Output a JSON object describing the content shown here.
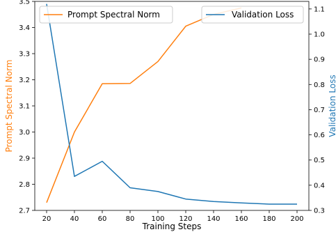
{
  "chart_data": {
    "type": "line",
    "x": [
      20,
      40,
      60,
      80,
      100,
      120,
      140,
      160,
      180,
      200
    ],
    "xlabel": "Training Steps",
    "xlim": [
      20,
      200
    ],
    "xticks": [
      "20",
      "40",
      "60",
      "80",
      "100",
      "120",
      "140",
      "160",
      "180",
      "200"
    ],
    "series": [
      {
        "name": "Prompt Spectral Norm",
        "axis": "left",
        "color": "#ff7f0e",
        "values": [
          2.73,
          3.0,
          3.185,
          3.186,
          3.27,
          3.405,
          3.45,
          3.475,
          null,
          null
        ]
      },
      {
        "name": "Validation Loss",
        "axis": "right",
        "color": "#1f77b4",
        "values": [
          1.12,
          0.435,
          0.495,
          0.39,
          0.375,
          0.345,
          0.335,
          0.33,
          0.325,
          0.325
        ]
      }
    ],
    "ylabel_left": "Prompt Spectral Norm",
    "ylim_left": [
      2.7,
      3.5
    ],
    "yticks_left": [
      "2.7",
      "2.8",
      "2.9",
      "3.0",
      "3.1",
      "3.2",
      "3.3",
      "3.4",
      "3.5"
    ],
    "ylabel_right": "Validation Loss",
    "ylim_right": [
      0.3,
      1.13
    ],
    "yticks_right": [
      "0.3",
      "0.4",
      "0.5",
      "0.6",
      "0.7",
      "0.8",
      "0.9",
      "1.0",
      "1.1"
    ],
    "legend_left_placement": "upper-left",
    "legend_right_placement": "upper-right",
    "grid": false
  }
}
